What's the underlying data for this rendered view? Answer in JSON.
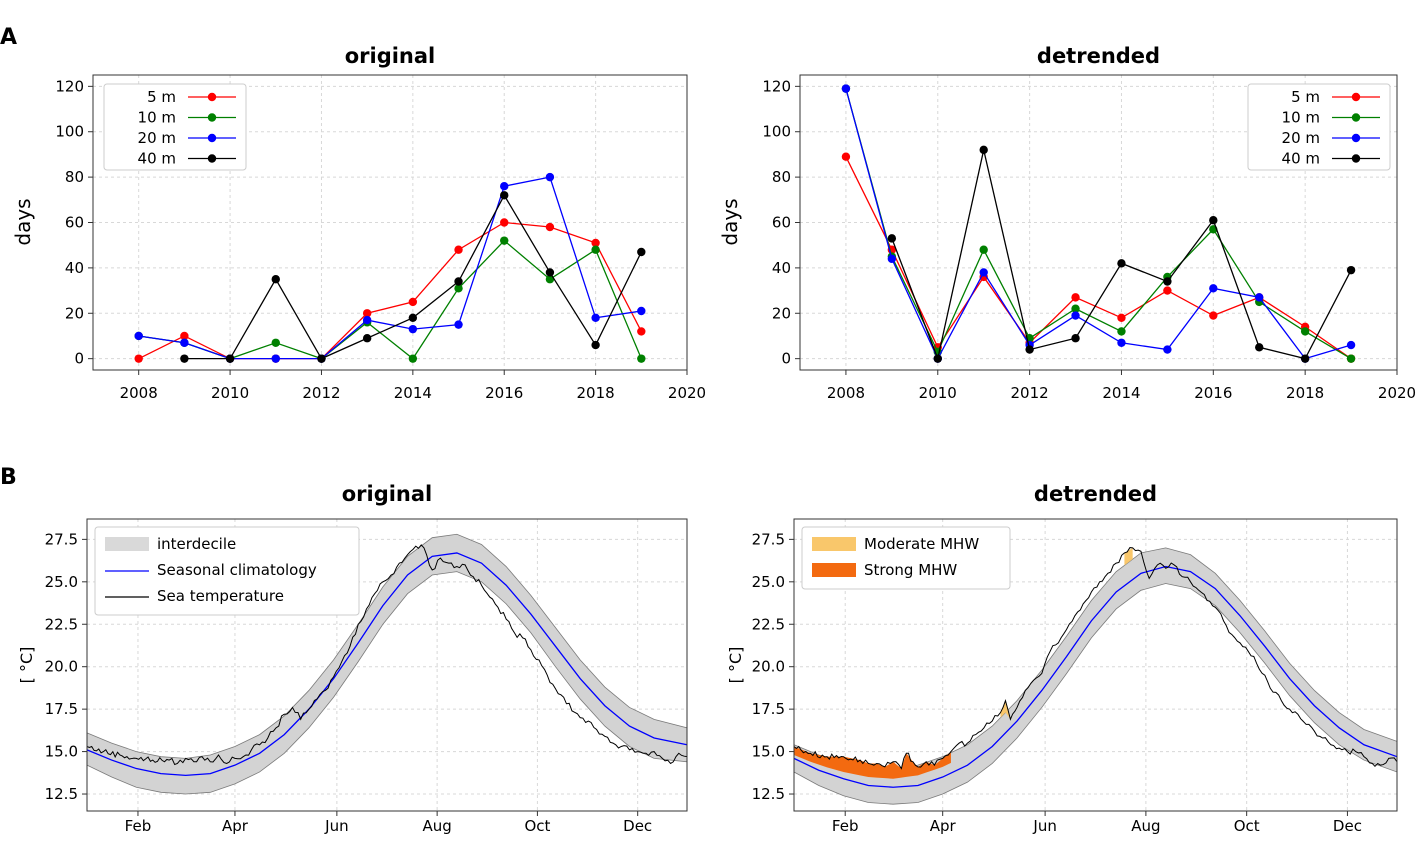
{
  "figure": {
    "panel_a_label": "A",
    "panel_b_label": "B"
  },
  "chart_data": [
    {
      "id": "A-original",
      "type": "line",
      "title": "original",
      "xlabel": "",
      "ylabel": "days",
      "xlim": [
        2007,
        2020
      ],
      "ylim": [
        -5,
        125
      ],
      "xticks": [
        2008,
        2010,
        2012,
        2014,
        2016,
        2018,
        2020
      ],
      "yticks": [
        0,
        20,
        40,
        60,
        80,
        100,
        120
      ],
      "legend_position": "top-left",
      "series": [
        {
          "name": "5 m",
          "color": "#ff0000",
          "x": [
            2008,
            2009,
            2010,
            2011,
            2012,
            2013,
            2014,
            2015,
            2016,
            2017,
            2018,
            2019
          ],
          "values": [
            0,
            10,
            0,
            0,
            0,
            20,
            25,
            48,
            60,
            58,
            51,
            12
          ]
        },
        {
          "name": "10 m",
          "color": "#008000",
          "x": [
            2008,
            2009,
            2010,
            2011,
            2012,
            2013,
            2014,
            2015,
            2016,
            2017,
            2018,
            2019
          ],
          "values": [
            10,
            7,
            0,
            7,
            0,
            16,
            0,
            31,
            52,
            35,
            48,
            0
          ]
        },
        {
          "name": "20 m",
          "color": "#0000ff",
          "x": [
            2008,
            2009,
            2010,
            2011,
            2012,
            2013,
            2014,
            2015,
            2016,
            2017,
            2018,
            2019
          ],
          "values": [
            10,
            7,
            0,
            0,
            0,
            17,
            13,
            15,
            76,
            80,
            18,
            21
          ]
        },
        {
          "name": "40 m",
          "color": "#000000",
          "x": [
            2009,
            2010,
            2011,
            2012,
            2013,
            2014,
            2015,
            2016,
            2017,
            2018,
            2019
          ],
          "values": [
            0,
            0,
            35,
            0,
            9,
            18,
            34,
            72,
            38,
            6,
            47
          ]
        }
      ]
    },
    {
      "id": "A-detrended",
      "type": "line",
      "title": "detrended",
      "xlabel": "",
      "ylabel": "days",
      "xlim": [
        2007,
        2020
      ],
      "ylim": [
        -5,
        125
      ],
      "xticks": [
        2008,
        2010,
        2012,
        2014,
        2016,
        2018,
        2020
      ],
      "yticks": [
        0,
        20,
        40,
        60,
        80,
        100,
        120
      ],
      "legend_position": "top-right",
      "series": [
        {
          "name": "5 m",
          "color": "#ff0000",
          "x": [
            2008,
            2009,
            2010,
            2011,
            2012,
            2013,
            2014,
            2015,
            2016,
            2017,
            2018,
            2019
          ],
          "values": [
            89,
            48,
            5,
            36,
            7,
            27,
            18,
            30,
            19,
            27,
            14,
            0
          ]
        },
        {
          "name": "10 m",
          "color": "#008000",
          "x": [
            2008,
            2009,
            2010,
            2011,
            2012,
            2013,
            2014,
            2015,
            2016,
            2017,
            2018,
            2019
          ],
          "values": [
            119,
            45,
            3,
            48,
            9,
            22,
            12,
            36,
            57,
            25,
            12,
            0
          ]
        },
        {
          "name": "20 m",
          "color": "#0000ff",
          "x": [
            2008,
            2009,
            2010,
            2011,
            2012,
            2013,
            2014,
            2015,
            2016,
            2017,
            2018,
            2019
          ],
          "values": [
            119,
            44,
            0,
            38,
            6,
            19,
            7,
            4,
            31,
            27,
            0,
            6
          ]
        },
        {
          "name": "40 m",
          "color": "#000000",
          "x": [
            2009,
            2010,
            2011,
            2012,
            2013,
            2014,
            2015,
            2016,
            2017,
            2018,
            2019
          ],
          "values": [
            53,
            0,
            92,
            4,
            9,
            42,
            34,
            61,
            5,
            0,
            39
          ]
        }
      ]
    },
    {
      "id": "B-original",
      "type": "area",
      "title": "original",
      "xlabel": "",
      "ylabel": "[ $^\\circ$C]",
      "ylabel_display": "[ °C]",
      "xlim": [
        0,
        365
      ],
      "ylim": [
        11.5,
        28.7
      ],
      "xticks": [
        31,
        90,
        152,
        213,
        274,
        335
      ],
      "xtick_labels": [
        "Feb",
        "Apr",
        "Jun",
        "Aug",
        "Oct",
        "Dec"
      ],
      "yticks": [
        12.5,
        15.0,
        17.5,
        20.0,
        22.5,
        25.0,
        27.5
      ],
      "legend_position": "top-left",
      "legend": [
        "interdecile",
        "Seasonal climatology",
        "Sea temperature"
      ],
      "climatology": {
        "name": "Seasonal climatology",
        "color": "#0000ff",
        "x": [
          0,
          15,
          30,
          45,
          60,
          75,
          90,
          105,
          120,
          135,
          150,
          165,
          180,
          195,
          210,
          225,
          240,
          255,
          270,
          285,
          300,
          315,
          330,
          345,
          365
        ],
        "values": [
          15.1,
          14.5,
          14.0,
          13.7,
          13.6,
          13.7,
          14.2,
          14.9,
          16.0,
          17.5,
          19.3,
          21.4,
          23.6,
          25.4,
          26.5,
          26.7,
          26.1,
          24.8,
          23.1,
          21.2,
          19.3,
          17.7,
          16.5,
          15.8,
          15.4
        ]
      },
      "interdecile": {
        "name": "interdecile",
        "color": "#d3d3d3",
        "x": [
          0,
          15,
          30,
          45,
          60,
          75,
          90,
          105,
          120,
          135,
          150,
          165,
          180,
          195,
          210,
          225,
          240,
          255,
          270,
          285,
          300,
          315,
          330,
          345,
          365
        ],
        "lower": [
          14.2,
          13.5,
          12.9,
          12.6,
          12.5,
          12.6,
          13.1,
          13.8,
          14.9,
          16.4,
          18.2,
          20.3,
          22.5,
          24.3,
          25.4,
          25.6,
          25.0,
          23.7,
          22.0,
          20.0,
          18.1,
          16.5,
          15.3,
          14.6,
          14.4
        ],
        "upper": [
          16.1,
          15.5,
          15.0,
          14.7,
          14.6,
          14.8,
          15.3,
          16.0,
          17.1,
          18.6,
          20.4,
          22.5,
          24.7,
          26.5,
          27.6,
          27.8,
          27.2,
          25.9,
          24.2,
          22.3,
          20.4,
          18.8,
          17.6,
          16.9,
          16.4
        ]
      },
      "sea_temperature": {
        "name": "Sea temperature",
        "color": "#000000",
        "x": [
          0,
          10,
          20,
          30,
          40,
          50,
          55,
          60,
          65,
          70,
          75,
          80,
          85,
          90,
          95,
          100,
          105,
          110,
          115,
          120,
          125,
          130,
          135,
          140,
          145,
          150,
          155,
          160,
          165,
          170,
          175,
          180,
          185,
          190,
          195,
          200,
          205,
          210,
          215,
          220,
          225,
          230,
          235,
          240,
          245,
          250,
          255,
          260,
          265,
          270,
          275,
          280,
          285,
          290,
          295,
          300,
          305,
          310,
          315,
          320,
          325,
          330,
          335,
          340,
          345,
          350,
          355,
          360,
          365
        ],
        "values": [
          15.3,
          15.0,
          14.8,
          14.6,
          14.5,
          14.5,
          14.3,
          14.6,
          14.4,
          14.7,
          14.4,
          14.8,
          14.3,
          14.6,
          14.7,
          15.1,
          15.4,
          15.8,
          16.4,
          17.2,
          17.6,
          16.9,
          17.5,
          18.1,
          18.6,
          19.4,
          20.3,
          21.2,
          22.5,
          23.4,
          24.3,
          25.0,
          25.4,
          26.1,
          26.6,
          27.1,
          27.0,
          25.7,
          26.4,
          26.1,
          25.9,
          26.0,
          25.3,
          24.8,
          24.1,
          23.5,
          22.8,
          22.0,
          21.7,
          21.0,
          20.4,
          19.5,
          18.7,
          18.2,
          17.4,
          17.0,
          16.8,
          16.3,
          15.9,
          15.5,
          15.3,
          15.1,
          15.0,
          14.9,
          15.0,
          14.6,
          14.3,
          14.9,
          14.7
        ]
      }
    },
    {
      "id": "B-detrended",
      "type": "area",
      "title": "detrended",
      "xlabel": "",
      "ylabel": "[ $^\\circ$C]",
      "ylabel_display": "[ °C]",
      "xlim": [
        0,
        365
      ],
      "ylim": [
        11.5,
        28.7
      ],
      "xticks": [
        31,
        90,
        152,
        213,
        274,
        335
      ],
      "xtick_labels": [
        "Feb",
        "Apr",
        "Jun",
        "Aug",
        "Oct",
        "Dec"
      ],
      "yticks": [
        12.5,
        15.0,
        17.5,
        20.0,
        22.5,
        25.0,
        27.5
      ],
      "legend_position": "top-left",
      "legend": [
        "Moderate MHW",
        "Strong MHW"
      ],
      "moderate_color": "#f9c76b",
      "strong_color": "#f36a10",
      "climatology": {
        "name": "Seasonal climatology",
        "color": "#0000ff",
        "x": [
          0,
          15,
          30,
          45,
          60,
          75,
          90,
          105,
          120,
          135,
          150,
          165,
          180,
          195,
          210,
          225,
          240,
          255,
          270,
          285,
          300,
          315,
          330,
          345,
          365
        ],
        "values": [
          14.6,
          13.9,
          13.4,
          13.0,
          12.9,
          13.0,
          13.5,
          14.2,
          15.3,
          16.8,
          18.6,
          20.6,
          22.7,
          24.4,
          25.5,
          25.9,
          25.6,
          24.6,
          23.0,
          21.2,
          19.3,
          17.7,
          16.4,
          15.4,
          14.7
        ]
      },
      "interdecile": {
        "name": "interdecile",
        "color": "#d3d3d3",
        "x": [
          0,
          15,
          30,
          45,
          60,
          75,
          90,
          105,
          120,
          135,
          150,
          165,
          180,
          195,
          210,
          225,
          240,
          255,
          270,
          285,
          300,
          315,
          330,
          345,
          365
        ],
        "lower": [
          13.8,
          13.0,
          12.4,
          12.0,
          11.9,
          12.0,
          12.5,
          13.2,
          14.3,
          15.8,
          17.6,
          19.6,
          21.7,
          23.4,
          24.5,
          24.9,
          24.6,
          23.6,
          22.0,
          20.2,
          18.3,
          16.7,
          15.4,
          14.5,
          13.8
        ],
        "upper": [
          15.4,
          14.8,
          14.4,
          14.1,
          14.0,
          14.2,
          14.7,
          15.4,
          16.5,
          18.0,
          19.8,
          21.8,
          23.9,
          25.6,
          26.7,
          27.0,
          26.6,
          25.5,
          23.9,
          22.1,
          20.2,
          18.6,
          17.3,
          16.3,
          15.6
        ]
      },
      "sea_temperature": {
        "name": "Sea temperature",
        "color": "#000000",
        "x": [
          0,
          10,
          20,
          30,
          40,
          45,
          50,
          55,
          60,
          65,
          68,
          72,
          75,
          80,
          85,
          90,
          95,
          100,
          105,
          110,
          115,
          120,
          125,
          128,
          131,
          135,
          140,
          145,
          150,
          155,
          160,
          165,
          170,
          175,
          180,
          185,
          190,
          195,
          200,
          205,
          210,
          215,
          220,
          225,
          230,
          235,
          240,
          245,
          250,
          255,
          260,
          265,
          270,
          275,
          280,
          285,
          290,
          295,
          300,
          305,
          310,
          315,
          320,
          325,
          330,
          335,
          340,
          345,
          350,
          355,
          360,
          365
        ],
        "values": [
          15.3,
          14.9,
          14.7,
          14.7,
          14.5,
          14.3,
          14.3,
          14.1,
          14.4,
          14.0,
          14.9,
          14.4,
          14.1,
          14.4,
          14.2,
          14.6,
          15.0,
          15.5,
          15.5,
          16.0,
          16.4,
          16.8,
          17.3,
          18.0,
          16.9,
          17.6,
          18.6,
          19.2,
          19.6,
          20.9,
          21.4,
          22.2,
          23.0,
          23.7,
          24.4,
          25.0,
          25.5,
          26.1,
          26.7,
          27.0,
          26.8,
          25.2,
          26.0,
          25.8,
          26.0,
          25.3,
          25.0,
          24.5,
          23.9,
          23.5,
          22.7,
          21.9,
          21.4,
          20.9,
          20.2,
          19.5,
          18.5,
          18.0,
          17.5,
          17.2,
          16.6,
          16.2,
          15.8,
          15.4,
          15.2,
          15.0,
          15.0,
          14.7,
          14.3,
          14.2,
          14.6,
          14.4
        ]
      }
    }
  ]
}
